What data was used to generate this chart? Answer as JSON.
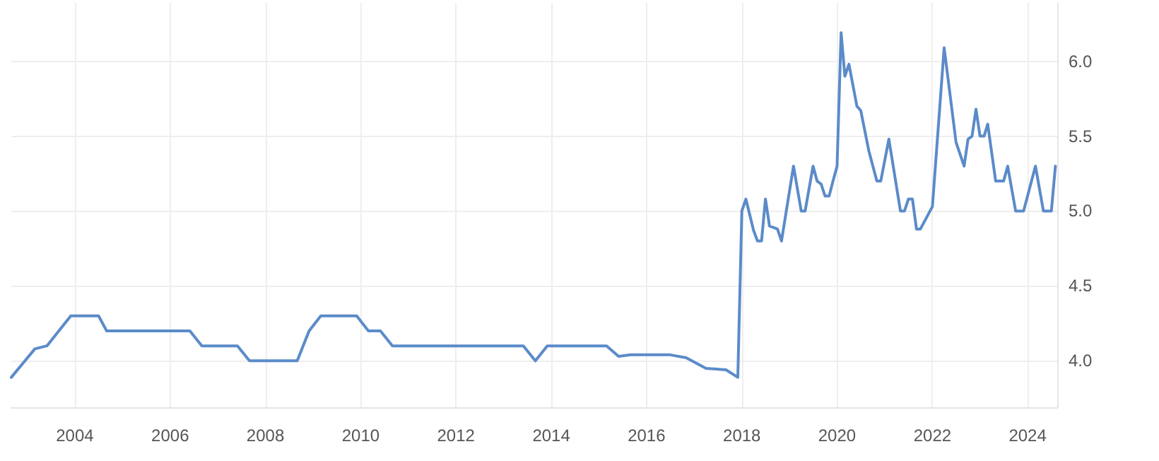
{
  "chart_data": {
    "type": "line",
    "x": [
      "2002-09",
      "2003-03",
      "2003-06",
      "2003-12",
      "2004-07",
      "2004-09",
      "2006-06",
      "2006-09",
      "2007-06",
      "2007-09",
      "2008-09",
      "2008-12",
      "2009-03",
      "2009-12",
      "2010-03",
      "2010-06",
      "2010-09",
      "2013-06",
      "2013-09",
      "2013-12",
      "2015-03",
      "2015-06",
      "2015-09",
      "2016-02",
      "2016-07",
      "2016-11",
      "2017-04",
      "2017-09",
      "2017-12",
      "2018-01",
      "2018-02",
      "2018-04",
      "2018-05",
      "2018-06",
      "2018-07",
      "2018-08",
      "2018-10",
      "2018-11",
      "2019-02",
      "2019-04",
      "2019-05",
      "2019-07",
      "2019-08",
      "2019-09",
      "2019-10",
      "2019-11",
      "2019-12",
      "2020-01",
      "2020-02",
      "2020-03",
      "2020-04",
      "2020-06",
      "2020-07",
      "2020-09",
      "2020-11",
      "2020-12",
      "2021-02",
      "2021-05",
      "2021-06",
      "2021-07",
      "2021-08",
      "2021-09",
      "2021-10",
      "2022-01",
      "2022-04",
      "2022-07",
      "2022-09",
      "2022-10",
      "2022-11",
      "2022-12",
      "2023-01",
      "2023-02",
      "2023-03",
      "2023-05",
      "2023-07",
      "2023-08",
      "2023-10",
      "2023-12",
      "2024-03",
      "2024-05",
      "2024-07",
      "2024-08"
    ],
    "series": [
      {
        "color": "#5b8bc9",
        "values": [
          3.89,
          4.08,
          4.1,
          4.3,
          4.3,
          4.2,
          4.2,
          4.1,
          4.1,
          4.0,
          4.0,
          4.2,
          4.3,
          4.3,
          4.2,
          4.2,
          4.1,
          4.1,
          4.0,
          4.1,
          4.1,
          4.03,
          4.04,
          4.04,
          4.04,
          4.02,
          3.95,
          3.94,
          3.89,
          5.0,
          5.08,
          4.87,
          4.8,
          4.8,
          5.08,
          4.9,
          4.88,
          4.8,
          5.3,
          5.0,
          5.0,
          5.3,
          5.2,
          5.18,
          5.1,
          5.1,
          5.2,
          5.3,
          6.19,
          5.9,
          5.98,
          5.7,
          5.67,
          5.4,
          5.2,
          5.2,
          5.48,
          5.0,
          5.0,
          5.08,
          5.08,
          4.88,
          4.88,
          5.03,
          6.09,
          5.46,
          5.3,
          5.48,
          5.5,
          5.68,
          5.5,
          5.5,
          5.58,
          5.2,
          5.2,
          5.3,
          5.0,
          5.0,
          5.3,
          5.0,
          5.0,
          5.3
        ]
      }
    ],
    "xlim": [
      "2002-09",
      "2024-08-15"
    ],
    "xticks": [
      "2004",
      "2006",
      "2008",
      "2010",
      "2012",
      "2014",
      "2016",
      "2018",
      "2020",
      "2022",
      "2024"
    ],
    "ylim": [
      3.69,
      6.39
    ],
    "yticks": [
      {
        "value": 4,
        "label": "4.0"
      },
      {
        "value": 4.5,
        "label": "4.5"
      },
      {
        "value": 5,
        "label": "5.0"
      },
      {
        "value": 5.5,
        "label": "5.5"
      },
      {
        "value": 6,
        "label": "6.0"
      }
    ],
    "grid": true,
    "marker": "none",
    "line_style": "solid"
  }
}
